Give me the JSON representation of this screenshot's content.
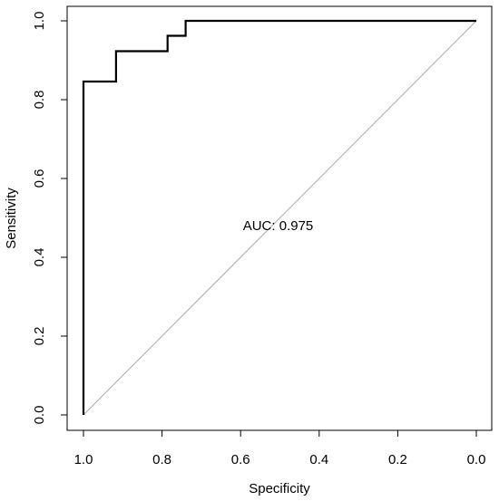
{
  "chart_data": {
    "type": "line",
    "title": "",
    "xlabel": "Specificity",
    "ylabel": "Sensitivity",
    "xlim": [
      1.0,
      0.0
    ],
    "ylim": [
      0.0,
      1.0
    ],
    "x_reversed": true,
    "xticks": [
      1.0,
      0.8,
      0.6,
      0.4,
      0.2,
      0.0
    ],
    "xtick_labels": [
      "1.0",
      "0.8",
      "0.6",
      "0.4",
      "0.2",
      "0.0"
    ],
    "yticks": [
      0.0,
      0.2,
      0.4,
      0.6,
      0.8,
      1.0
    ],
    "ytick_labels": [
      "0.0",
      "0.2",
      "0.4",
      "0.6",
      "0.8",
      "1.0"
    ],
    "grid": false,
    "legend": "none",
    "series": [
      {
        "color": "#000000",
        "x": [
          1.0,
          1.0,
          0.917,
          0.917,
          0.786,
          0.786,
          0.74,
          0.74,
          0.0
        ],
        "y": [
          0.0,
          0.846,
          0.846,
          0.923,
          0.923,
          0.962,
          0.962,
          1.0,
          1.0
        ]
      }
    ],
    "reference_line": {
      "x": [
        1.0,
        0.0
      ],
      "y": [
        0.0,
        1.0
      ],
      "color": "#aaaaaa"
    },
    "annotations": [
      {
        "text": "AUC: 0.975",
        "x": 0.5,
        "y": 0.48
      }
    ]
  }
}
